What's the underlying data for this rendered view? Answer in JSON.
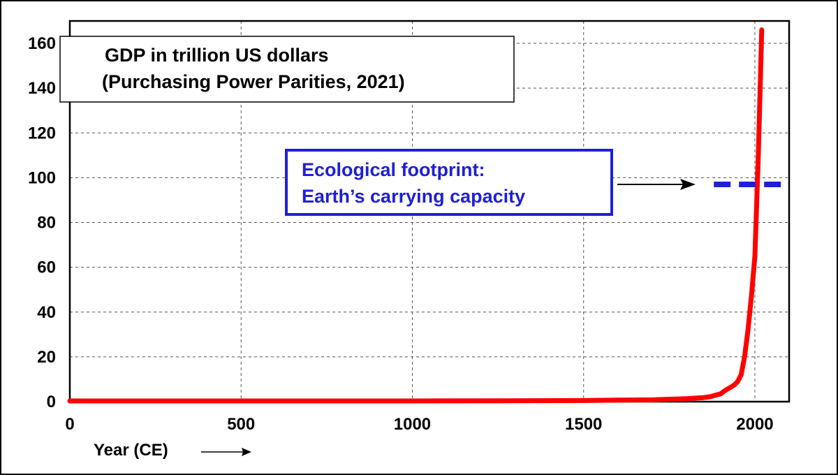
{
  "chart_data": {
    "type": "line",
    "title_lines": [
      "GDP in trillion US dollars",
      "(Purchasing Power Parities, 2021)"
    ],
    "xlabel": "Year (CE)",
    "ylabel": "",
    "xlim": [
      0,
      2100
    ],
    "ylim": [
      0,
      170
    ],
    "x_ticks": [
      0,
      500,
      1000,
      1500,
      2000
    ],
    "y_ticks": [
      0,
      20,
      40,
      60,
      80,
      100,
      120,
      140,
      160
    ],
    "grid": true,
    "series": [
      {
        "color": "#ff0000",
        "x": [
          0,
          500,
          1000,
          1300,
          1500,
          1600,
          1700,
          1800,
          1850,
          1870,
          1900,
          1913,
          1930,
          1940,
          1950,
          1960,
          1970,
          1980,
          1990,
          2000,
          2010,
          2020
        ],
        "y": [
          0.3,
          0.3,
          0.3,
          0.4,
          0.5,
          0.7,
          0.8,
          1.3,
          1.8,
          2.2,
          3.5,
          5,
          6.5,
          7.5,
          9,
          12,
          20,
          32,
          47,
          65,
          110,
          166
        ]
      }
    ],
    "reference_line": {
      "label_lines": [
        "Ecological footprint:",
        "Earth’s carrying capacity"
      ],
      "y": 97,
      "x_start": 1870,
      "x_end": 2100,
      "color": "#1f1fd6",
      "style": "dashed"
    }
  }
}
